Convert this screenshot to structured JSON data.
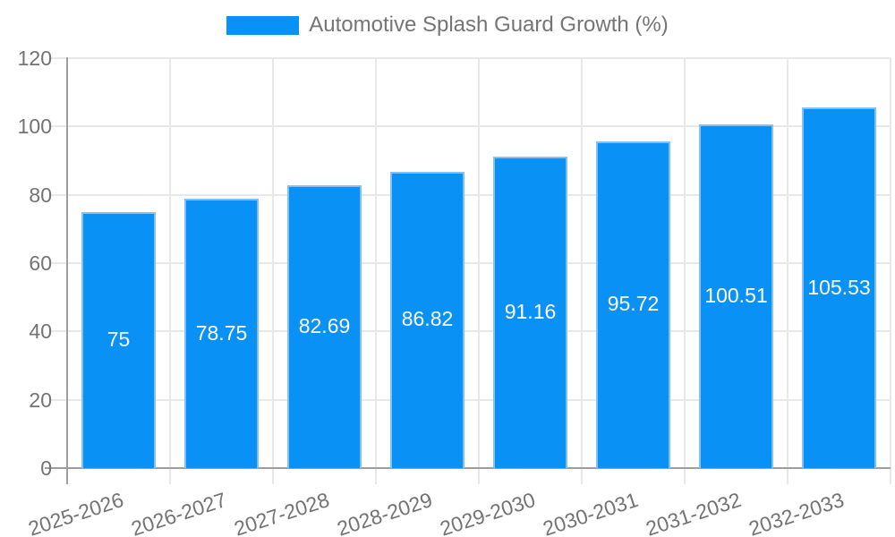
{
  "chart_data": {
    "type": "bar",
    "title": "Automotive Splash Guard Growth (%)",
    "categories": [
      "2025-2026",
      "2026-2027",
      "2027-2028",
      "2028-2029",
      "2029-2030",
      "2030-2031",
      "2031-2032",
      "2032-2033"
    ],
    "values": [
      75,
      78.75,
      82.69,
      86.82,
      91.16,
      95.72,
      100.51,
      105.53
    ],
    "value_labels": [
      "75",
      "78.75",
      "82.69",
      "86.82",
      "91.16",
      "95.72",
      "100.51",
      "105.53"
    ],
    "xlabel": "",
    "ylabel": "",
    "ylim": [
      0,
      120
    ],
    "yticks": [
      0,
      20,
      40,
      60,
      80,
      100,
      120
    ],
    "grid": true,
    "legend_position": "top",
    "colors": {
      "bar_fill": "#0a91f6",
      "bar_border": "#7fc1f8",
      "grid_line": "#e8e8e8",
      "axis_line": "#9e9e9e",
      "tick_label": "#737373",
      "legend_text": "#757575",
      "value_label": "#ffffff",
      "background": "#ffffff"
    }
  }
}
